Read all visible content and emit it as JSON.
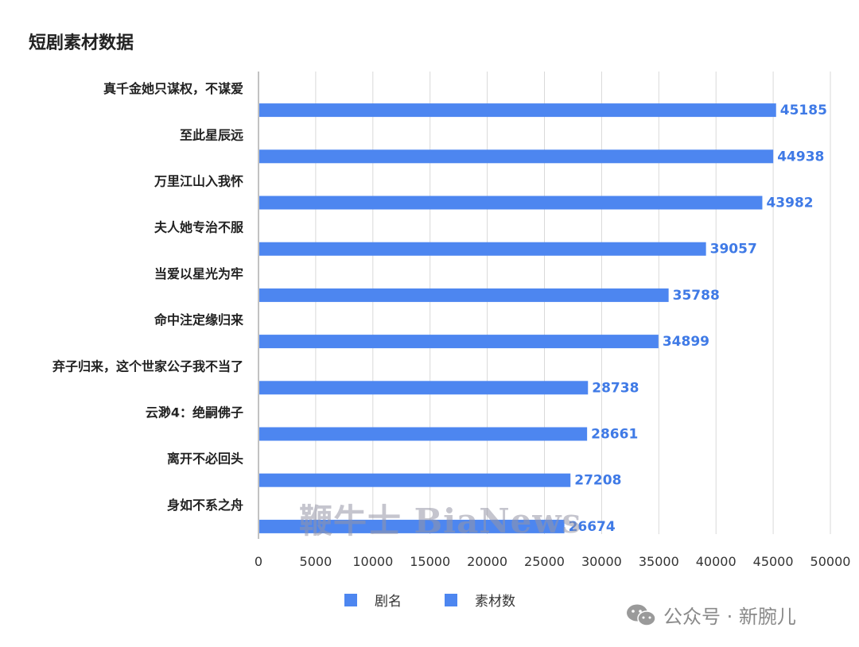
{
  "title": "短剧素材数据",
  "colors": {
    "bar": "#4d86f0",
    "label": "#3f7ae6",
    "grid": "#d9d9d9",
    "axis": "#999999"
  },
  "legend": [
    {
      "label": "剧名",
      "color": "#4d86f0"
    },
    {
      "label": "素材数",
      "color": "#4d86f0"
    }
  ],
  "watermark": "鞭牛士 BiaNews",
  "wechat_credit": "公众号 · 新腕儿",
  "chart_data": {
    "type": "bar",
    "orientation": "horizontal",
    "categories": [
      "真千金她只谋权，不谋爱",
      "至此星辰远",
      "万里江山入我怀",
      "夫人她专治不服",
      "当爱以星光为牢",
      "命中注定缘归来",
      "弃子归来，这个世家公子我不当了",
      "云渺4：绝嗣佛子",
      "离开不必回头",
      "身如不系之舟"
    ],
    "values": [
      45185,
      44938,
      43982,
      39057,
      35788,
      34899,
      28738,
      28661,
      27208,
      26674
    ],
    "xlim": [
      0,
      50000
    ],
    "xticks": [
      0,
      5000,
      10000,
      15000,
      20000,
      25000,
      30000,
      35000,
      40000,
      45000,
      50000
    ],
    "grid": true,
    "legend_position": "bottom"
  }
}
